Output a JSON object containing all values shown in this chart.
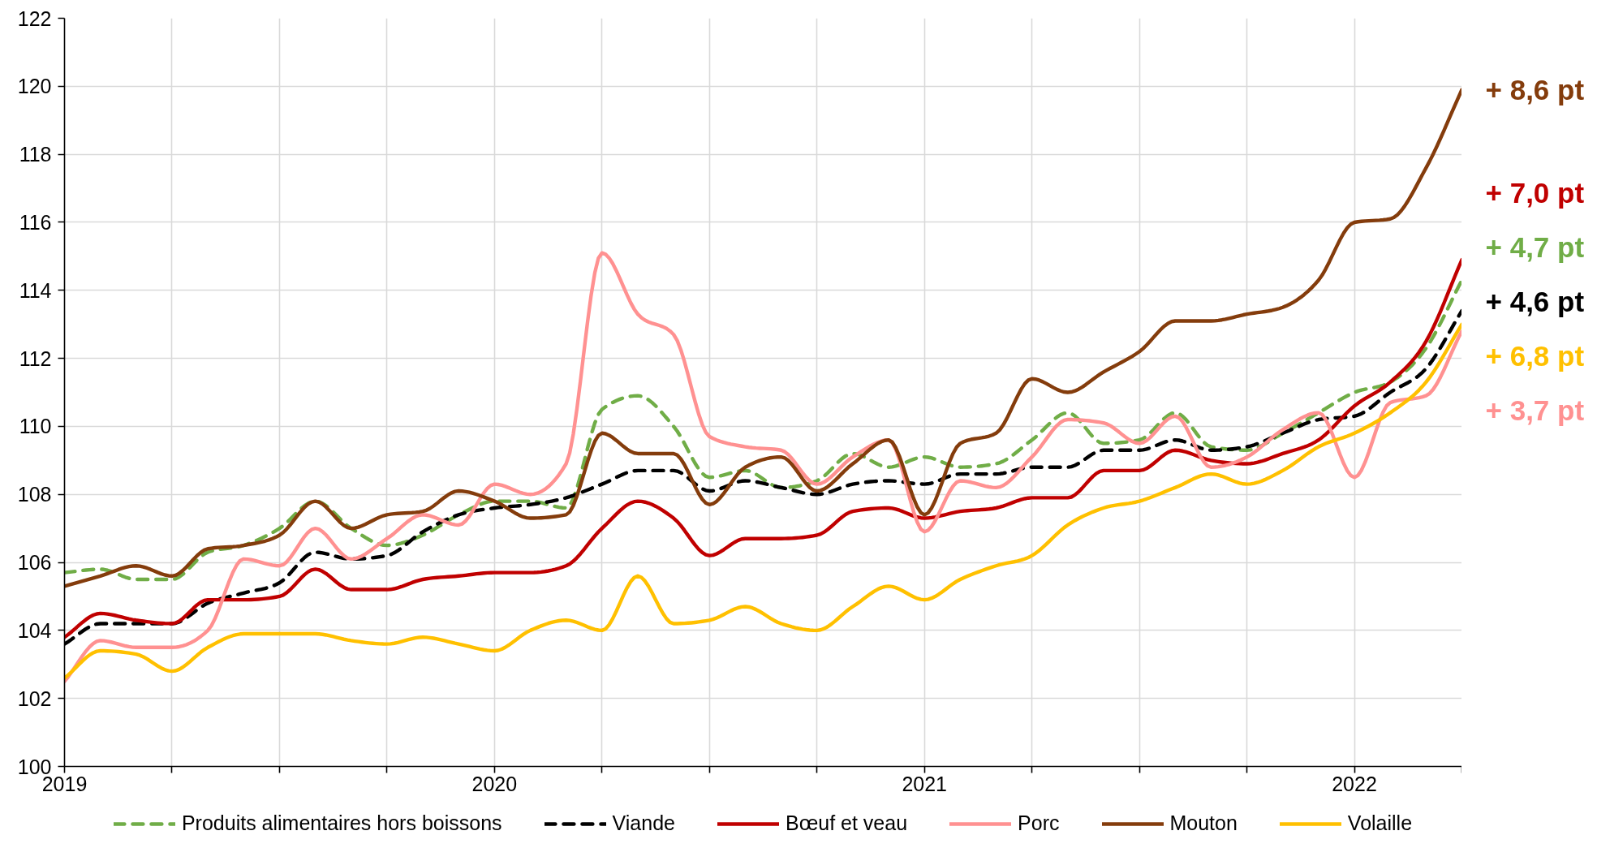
{
  "chart_data": {
    "type": "line",
    "x": [
      "2019-01",
      "2019-02",
      "2019-03",
      "2019-04",
      "2019-05",
      "2019-06",
      "2019-07",
      "2019-08",
      "2019-09",
      "2019-10",
      "2019-11",
      "2019-12",
      "2020-01",
      "2020-02",
      "2020-03",
      "2020-04",
      "2020-05",
      "2020-06",
      "2020-07",
      "2020-08",
      "2020-09",
      "2020-10",
      "2020-11",
      "2020-12",
      "2021-01",
      "2021-02",
      "2021-03",
      "2021-04",
      "2021-05",
      "2021-06",
      "2021-07",
      "2021-08",
      "2021-09",
      "2021-10",
      "2021-11",
      "2021-12",
      "2022-01",
      "2022-02",
      "2022-03",
      "2022-04"
    ],
    "xlim": [
      "2019-01",
      "2022-04"
    ],
    "xticks": [
      "2019",
      {
        "value": "2019-04",
        "label": null
      },
      {
        "value": "2019-07",
        "label": null
      },
      {
        "value": "2019-10",
        "label": null
      },
      "2020",
      {
        "value": "2020-04",
        "label": null
      },
      {
        "value": "2020-07",
        "label": null
      },
      {
        "value": "2020-10",
        "label": null
      },
      "2021",
      {
        "value": "2021-04",
        "label": null
      },
      {
        "value": "2021-07",
        "label": null
      },
      {
        "value": "2021-10",
        "label": null
      },
      "2022",
      {
        "value": "2022-04",
        "label": null
      }
    ],
    "ylim": [
      100,
      122
    ],
    "yticks": [
      100,
      102,
      104,
      106,
      108,
      110,
      112,
      114,
      116,
      118,
      120,
      122
    ],
    "grid": true,
    "legend": "bottom",
    "series": [
      {
        "name": "Produits alimentaires hors boissons",
        "color": "#70ad47",
        "line_style": "dashed",
        "values": [
          105.7,
          105.8,
          105.5,
          105.5,
          106.3,
          106.5,
          107.0,
          107.8,
          107.0,
          106.5,
          106.8,
          107.4,
          107.8,
          107.8,
          107.6,
          110.5,
          110.9,
          110.0,
          108.5,
          108.7,
          108.2,
          108.4,
          109.2,
          108.8,
          109.1,
          108.8,
          108.9,
          109.6,
          110.4,
          109.5,
          109.6,
          110.4,
          109.4,
          109.3,
          109.8,
          110.4,
          111.0,
          111.3,
          112.3,
          114.3
        ]
      },
      {
        "name": "Viande",
        "color": "#000000",
        "line_style": "dashed",
        "values": [
          103.6,
          104.2,
          104.2,
          104.2,
          104.8,
          105.1,
          105.4,
          106.3,
          106.1,
          106.2,
          106.9,
          107.4,
          107.6,
          107.7,
          107.9,
          108.3,
          108.7,
          108.7,
          108.1,
          108.4,
          108.2,
          108.0,
          108.3,
          108.4,
          108.3,
          108.6,
          108.6,
          108.8,
          108.8,
          109.3,
          109.3,
          109.6,
          109.3,
          109.4,
          109.8,
          110.2,
          110.3,
          111.0,
          111.7,
          113.4
        ]
      },
      {
        "name": "Bœuf et veau",
        "color": "#c00000",
        "line_style": "solid",
        "values": [
          103.8,
          104.5,
          104.3,
          104.2,
          104.9,
          104.9,
          105.0,
          105.8,
          105.2,
          105.2,
          105.5,
          105.6,
          105.7,
          105.7,
          105.9,
          107.0,
          107.8,
          107.3,
          106.2,
          106.7,
          106.7,
          106.8,
          107.5,
          107.6,
          107.3,
          107.5,
          107.6,
          107.9,
          107.9,
          108.7,
          108.7,
          109.3,
          109.0,
          108.9,
          109.2,
          109.6,
          110.6,
          111.3,
          112.5,
          114.9
        ]
      },
      {
        "name": "Porc",
        "color": "#ff9191",
        "line_style": "solid",
        "values": [
          102.5,
          103.7,
          103.5,
          103.5,
          104.0,
          106.1,
          105.9,
          107.0,
          106.1,
          106.7,
          107.4,
          107.1,
          108.3,
          108.0,
          108.9,
          115.1,
          113.3,
          112.7,
          109.7,
          109.4,
          109.3,
          108.3,
          109.1,
          109.6,
          106.9,
          108.4,
          108.2,
          109.1,
          110.2,
          110.1,
          109.5,
          110.3,
          108.8,
          109.1,
          109.9,
          110.4,
          108.5,
          110.7,
          110.9,
          112.8
        ]
      },
      {
        "name": "Mouton",
        "color": "#843c0c",
        "line_style": "solid",
        "values": [
          105.3,
          105.6,
          105.9,
          105.6,
          106.4,
          106.5,
          106.8,
          107.8,
          107.0,
          107.4,
          107.5,
          108.1,
          107.8,
          107.3,
          107.4,
          109.8,
          109.2,
          109.2,
          107.7,
          108.8,
          109.1,
          108.1,
          108.9,
          109.6,
          107.4,
          109.5,
          109.8,
          111.4,
          111.0,
          111.6,
          112.2,
          113.1,
          113.1,
          113.3,
          113.5,
          114.3,
          116.0,
          116.1,
          117.6,
          119.9
        ]
      },
      {
        "name": "Volaille",
        "color": "#ffc000",
        "line_style": "solid",
        "values": [
          102.6,
          103.4,
          103.3,
          102.8,
          103.5,
          103.9,
          103.9,
          103.9,
          103.7,
          103.6,
          103.8,
          103.6,
          103.4,
          104.0,
          104.3,
          104.0,
          105.6,
          104.2,
          104.3,
          104.7,
          104.2,
          104.0,
          104.7,
          105.3,
          104.9,
          105.5,
          105.9,
          106.2,
          107.1,
          107.6,
          107.8,
          108.2,
          108.6,
          108.3,
          108.7,
          109.4,
          109.8,
          110.4,
          111.3,
          113.0
        ]
      }
    ],
    "annotations": [
      {
        "text": "+ 8,6 pt",
        "x": "2022-04",
        "y": 119.9
      },
      {
        "text": "+ 7,0 pt",
        "x": "2022-04",
        "y": 114.9
      },
      {
        "text": "+ 4,7 pt",
        "x": "2022-04",
        "y": 114.3
      },
      {
        "text": "+ 4,6 pt",
        "x": "2022-04",
        "y": 113.4
      },
      {
        "text": "+ 6,8 pt",
        "x": "2022-04",
        "y": 113.0
      },
      {
        "text": "+ 3,7 pt",
        "x": "2022-04",
        "y": 112.8
      }
    ]
  }
}
